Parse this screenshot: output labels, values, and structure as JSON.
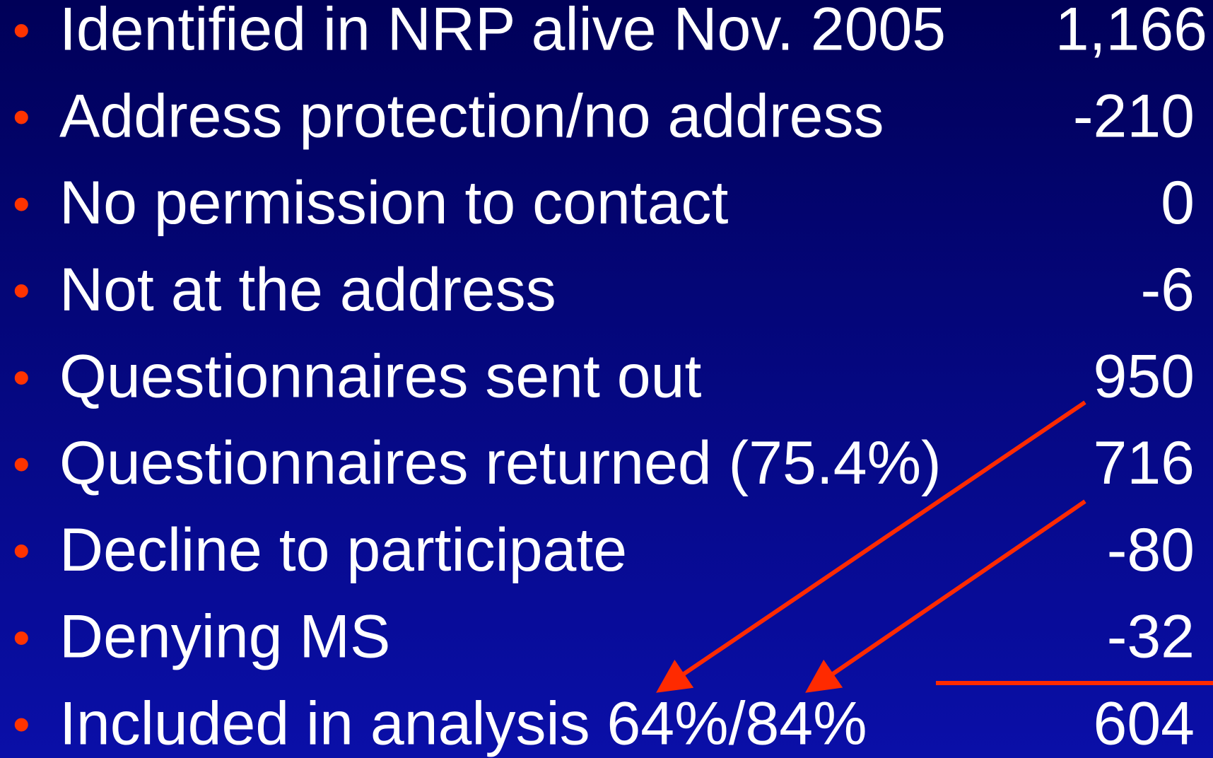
{
  "slide": {
    "items": [
      {
        "label": "Identified in NRP alive Nov. 2005",
        "value": "1,166"
      },
      {
        "label": "Address protection/no address",
        "value": "-210"
      },
      {
        "label": "No permission to contact",
        "value": "0"
      },
      {
        "label": "Not at the address",
        "value": "-6"
      },
      {
        "label": "Questionnaires sent out",
        "value": "950"
      },
      {
        "label": "Questionnaires returned (75.4%)",
        "value": "716"
      },
      {
        "label": "Decline to participate",
        "value": "-80"
      },
      {
        "label": "Denying MS",
        "value": "-32"
      },
      {
        "label": "Included in analysis 64%/84%",
        "value": "604"
      }
    ]
  }
}
